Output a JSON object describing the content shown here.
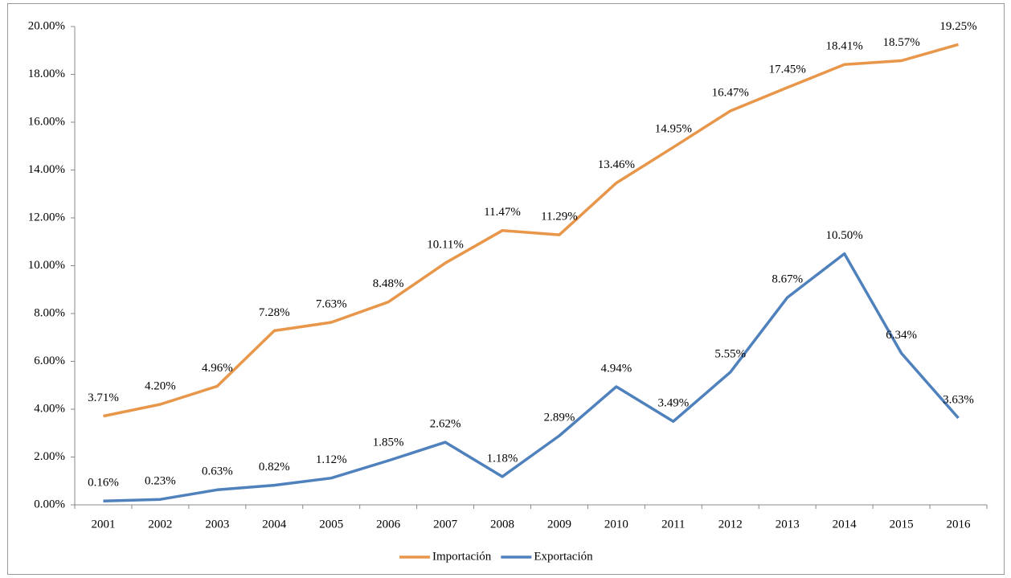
{
  "chart_data": {
    "type": "line",
    "categories": [
      "2001",
      "2002",
      "2003",
      "2004",
      "2005",
      "2006",
      "2007",
      "2008",
      "2009",
      "2010",
      "2011",
      "2012",
      "2013",
      "2014",
      "2015",
      "2016"
    ],
    "series": [
      {
        "name": "Importación",
        "color": "#e8964a",
        "values": [
          3.71,
          4.2,
          4.96,
          7.28,
          7.63,
          8.48,
          10.11,
          11.47,
          11.29,
          13.46,
          14.95,
          16.47,
          17.45,
          18.41,
          18.57,
          19.25
        ],
        "value_labels": [
          "3.71%",
          "4.20%",
          "4.96%",
          "7.28%",
          "7.63%",
          "8.48%",
          "10.11%",
          "11.47%",
          "11.29%",
          "13.46%",
          "14.95%",
          "16.47%",
          "17.45%",
          "18.41%",
          "18.57%",
          "19.25%"
        ]
      },
      {
        "name": "Exportación",
        "color": "#4f81bd",
        "values": [
          0.16,
          0.23,
          0.63,
          0.82,
          1.12,
          1.85,
          2.62,
          1.18,
          2.89,
          4.94,
          3.49,
          5.55,
          8.67,
          10.5,
          6.34,
          3.63
        ],
        "value_labels": [
          "0.16%",
          "0.23%",
          "0.63%",
          "0.82%",
          "1.12%",
          "1.85%",
          "2.62%",
          "1.18%",
          "2.89%",
          "4.94%",
          "3.49%",
          "5.55%",
          "8.67%",
          "10.50%",
          "6.34%",
          "3.63%"
        ]
      }
    ],
    "ylim": [
      0,
      20
    ],
    "yticks": [
      {
        "value": 0,
        "label": "0.00%"
      },
      {
        "value": 2,
        "label": "2.00%"
      },
      {
        "value": 4,
        "label": "4.00%"
      },
      {
        "value": 6,
        "label": "6.00%"
      },
      {
        "value": 8,
        "label": "8.00%"
      },
      {
        "value": 10,
        "label": "10.00%"
      },
      {
        "value": 12,
        "label": "12.00%"
      },
      {
        "value": 14,
        "label": "14.00%"
      },
      {
        "value": 16,
        "label": "16.00%"
      },
      {
        "value": 18,
        "label": "18.00%"
      },
      {
        "value": 20,
        "label": "20.00%"
      }
    ],
    "grid": false,
    "legend": "bottom"
  }
}
